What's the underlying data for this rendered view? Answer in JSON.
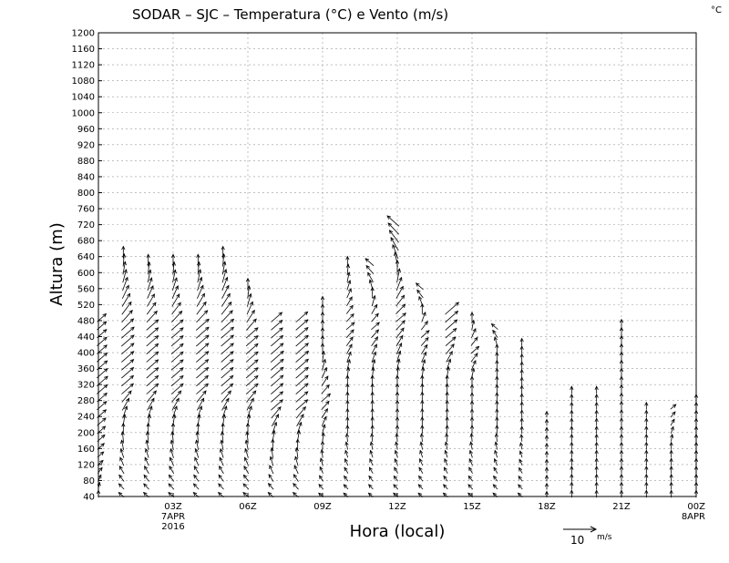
{
  "chart_data": {
    "type": "vector",
    "title": "SODAR – SJC – Temperatura (°C) e Vento (m/s)",
    "corner_unit": "°C",
    "xlabel": "Hora (local)",
    "ylabel": "Altura (m)",
    "ylim": [
      40,
      1200
    ],
    "xlim_hours": [
      0,
      24
    ],
    "y_ticks": [
      "40",
      "80",
      "120",
      "160",
      "200",
      "240",
      "280",
      "320",
      "360",
      "400",
      "440",
      "480",
      "520",
      "560",
      "600",
      "640",
      "680",
      "720",
      "760",
      "800",
      "840",
      "880",
      "920",
      "960",
      "1000",
      "1040",
      "1080",
      "1120",
      "1160",
      "1200"
    ],
    "x_ticks": [
      {
        "hour": 3,
        "label": "03Z",
        "sub1": "7APR",
        "sub2": "2016"
      },
      {
        "hour": 6,
        "label": "06Z",
        "sub1": "",
        "sub2": ""
      },
      {
        "hour": 9,
        "label": "09Z",
        "sub1": "",
        "sub2": ""
      },
      {
        "hour": 12,
        "label": "12Z",
        "sub1": "",
        "sub2": ""
      },
      {
        "hour": 15,
        "label": "15Z",
        "sub1": "",
        "sub2": ""
      },
      {
        "hour": 18,
        "label": "18Z",
        "sub1": "",
        "sub2": ""
      },
      {
        "hour": 21,
        "label": "21Z",
        "sub1": "",
        "sub2": ""
      },
      {
        "hour": 24,
        "label": "00Z",
        "sub1": "8APR",
        "sub2": ""
      }
    ],
    "grid": true,
    "reference_vector": {
      "value": "10",
      "unit": "m/s"
    },
    "wind_profiles": [
      {
        "hour": 0.0,
        "top": 480,
        "profile": [
          [
            40,
            0.6,
            "N"
          ],
          [
            120,
            0.6,
            "NE"
          ],
          [
            200,
            0.9,
            "NE"
          ],
          [
            320,
            1.2,
            "NE"
          ],
          [
            480,
            1.0,
            "NE"
          ]
        ]
      },
      {
        "hour": 1.0,
        "top": 640,
        "profile": [
          [
            40,
            0.6,
            "NW"
          ],
          [
            200,
            0.9,
            "N"
          ],
          [
            300,
            1.3,
            "NE"
          ],
          [
            450,
            1.4,
            "NE"
          ],
          [
            640,
            1.0,
            "N"
          ]
        ]
      },
      {
        "hour": 2.0,
        "top": 620,
        "profile": [
          [
            40,
            0.6,
            "NW"
          ],
          [
            200,
            0.9,
            "N"
          ],
          [
            300,
            1.3,
            "NE"
          ],
          [
            460,
            1.3,
            "NE"
          ],
          [
            620,
            1.0,
            "N"
          ]
        ]
      },
      {
        "hour": 3.0,
        "top": 620,
        "profile": [
          [
            40,
            0.6,
            "NW"
          ],
          [
            200,
            0.9,
            "N"
          ],
          [
            300,
            1.3,
            "NE"
          ],
          [
            460,
            1.3,
            "NE"
          ],
          [
            620,
            1.0,
            "N"
          ]
        ]
      },
      {
        "hour": 4.0,
        "top": 620,
        "profile": [
          [
            40,
            0.6,
            "NW"
          ],
          [
            200,
            0.9,
            "N"
          ],
          [
            300,
            1.3,
            "NE"
          ],
          [
            460,
            1.4,
            "NE"
          ],
          [
            620,
            1.0,
            "N"
          ]
        ]
      },
      {
        "hour": 5.0,
        "top": 640,
        "profile": [
          [
            40,
            0.6,
            "NW"
          ],
          [
            200,
            0.9,
            "N"
          ],
          [
            300,
            1.3,
            "NE"
          ],
          [
            460,
            1.4,
            "NE"
          ],
          [
            640,
            1.0,
            "N"
          ]
        ]
      },
      {
        "hour": 6.0,
        "top": 560,
        "profile": [
          [
            40,
            0.6,
            "NW"
          ],
          [
            200,
            0.9,
            "N"
          ],
          [
            300,
            1.3,
            "NE"
          ],
          [
            440,
            1.3,
            "NE"
          ],
          [
            560,
            1.0,
            "N"
          ]
        ]
      },
      {
        "hour": 7.0,
        "top": 480,
        "profile": [
          [
            40,
            0.6,
            "NW"
          ],
          [
            160,
            0.9,
            "N"
          ],
          [
            260,
            1.3,
            "NE"
          ],
          [
            380,
            1.4,
            "NE"
          ],
          [
            480,
            1.2,
            "NE"
          ]
        ]
      },
      {
        "hour": 8.0,
        "top": 480,
        "profile": [
          [
            40,
            0.6,
            "NW"
          ],
          [
            160,
            0.9,
            "N"
          ],
          [
            260,
            1.3,
            "NE"
          ],
          [
            380,
            1.4,
            "NE"
          ],
          [
            480,
            1.3,
            "NE"
          ]
        ]
      },
      {
        "hour": 9.0,
        "top": 520,
        "profile": [
          [
            40,
            0.5,
            "NW"
          ],
          [
            160,
            0.7,
            "N"
          ],
          [
            280,
            1.0,
            "NE"
          ],
          [
            400,
            0.9,
            "N"
          ],
          [
            520,
            0.8,
            "N"
          ]
        ]
      },
      {
        "hour": 10.0,
        "top": 620,
        "profile": [
          [
            40,
            0.5,
            "NW"
          ],
          [
            200,
            0.7,
            "N"
          ],
          [
            320,
            0.9,
            "N"
          ],
          [
            460,
            0.9,
            "NE"
          ],
          [
            620,
            0.8,
            "N"
          ]
        ]
      },
      {
        "hour": 11.0,
        "top": 620,
        "profile": [
          [
            40,
            0.5,
            "NW"
          ],
          [
            200,
            0.7,
            "N"
          ],
          [
            320,
            0.9,
            "N"
          ],
          [
            460,
            0.9,
            "NE"
          ],
          [
            620,
            0.9,
            "NW"
          ]
        ]
      },
      {
        "hour": 12.0,
        "top": 720,
        "profile": [
          [
            40,
            0.5,
            "NW"
          ],
          [
            200,
            0.7,
            "N"
          ],
          [
            320,
            0.9,
            "N"
          ],
          [
            480,
            1.1,
            "NE"
          ],
          [
            720,
            1.3,
            "NW"
          ]
        ]
      },
      {
        "hour": 13.0,
        "top": 560,
        "profile": [
          [
            40,
            0.5,
            "NW"
          ],
          [
            200,
            0.7,
            "N"
          ],
          [
            320,
            0.9,
            "N"
          ],
          [
            440,
            0.9,
            "NE"
          ],
          [
            560,
            0.8,
            "NW"
          ]
        ]
      },
      {
        "hour": 14.0,
        "top": 500,
        "profile": [
          [
            40,
            0.5,
            "NW"
          ],
          [
            200,
            0.7,
            "N"
          ],
          [
            320,
            0.9,
            "N"
          ],
          [
            420,
            1.1,
            "NE"
          ],
          [
            500,
            1.5,
            "NE"
          ]
        ]
      },
      {
        "hour": 15.0,
        "top": 480,
        "profile": [
          [
            40,
            0.5,
            "NW"
          ],
          [
            200,
            0.7,
            "N"
          ],
          [
            320,
            0.8,
            "N"
          ],
          [
            400,
            0.9,
            "NE"
          ],
          [
            480,
            0.8,
            "N"
          ]
        ]
      },
      {
        "hour": 16.0,
        "top": 460,
        "profile": [
          [
            40,
            0.5,
            "NW"
          ],
          [
            200,
            0.7,
            "N"
          ],
          [
            320,
            0.8,
            "N"
          ],
          [
            400,
            0.8,
            "N"
          ],
          [
            460,
            0.7,
            "NW"
          ]
        ]
      },
      {
        "hour": 17.0,
        "top": 420,
        "profile": [
          [
            40,
            0.5,
            "NW"
          ],
          [
            200,
            0.6,
            "N"
          ],
          [
            320,
            0.7,
            "N"
          ],
          [
            420,
            0.6,
            "N"
          ]
        ]
      },
      {
        "hour": 18.0,
        "top": 240,
        "profile": [
          [
            40,
            0.5,
            "N"
          ],
          [
            140,
            0.5,
            "N"
          ],
          [
            240,
            0.5,
            "N"
          ]
        ]
      },
      {
        "hour": 19.0,
        "top": 300,
        "profile": [
          [
            40,
            0.6,
            "N"
          ],
          [
            160,
            0.6,
            "N"
          ],
          [
            300,
            0.6,
            "N"
          ]
        ]
      },
      {
        "hour": 20.0,
        "top": 300,
        "profile": [
          [
            40,
            0.6,
            "N"
          ],
          [
            160,
            0.6,
            "N"
          ],
          [
            300,
            0.6,
            "N"
          ]
        ]
      },
      {
        "hour": 21.0,
        "top": 460,
        "profile": [
          [
            40,
            0.6,
            "N"
          ],
          [
            200,
            0.6,
            "N"
          ],
          [
            320,
            0.8,
            "N"
          ],
          [
            460,
            0.9,
            "N"
          ]
        ]
      },
      {
        "hour": 22.0,
        "top": 260,
        "profile": [
          [
            40,
            0.6,
            "N"
          ],
          [
            160,
            0.6,
            "N"
          ],
          [
            260,
            0.6,
            "N"
          ]
        ]
      },
      {
        "hour": 23.0,
        "top": 260,
        "profile": [
          [
            40,
            0.6,
            "N"
          ],
          [
            160,
            0.6,
            "N"
          ],
          [
            260,
            0.6,
            "NE"
          ]
        ]
      },
      {
        "hour": 24.0,
        "top": 280,
        "profile": [
          [
            40,
            0.6,
            "N"
          ],
          [
            160,
            0.6,
            "N"
          ],
          [
            280,
            0.6,
            "N"
          ]
        ]
      }
    ]
  }
}
